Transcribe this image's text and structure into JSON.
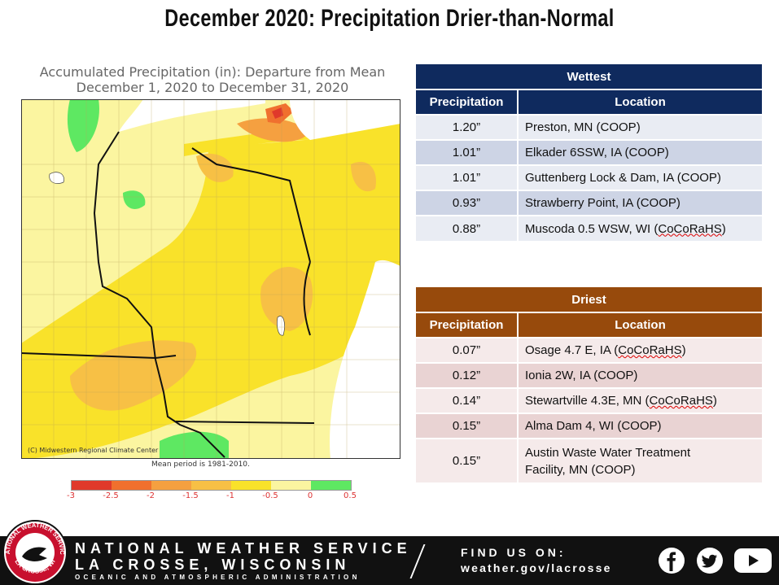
{
  "page_title": "December 2020:  Precipitation Drier-than-Normal",
  "map": {
    "title_line1": "Accumulated Precipitation (in): Departure from Mean",
    "title_line2": "December 1, 2020 to December 31, 2020",
    "credit": "(C) Midwestern Regional Climate Center",
    "mean_period": "Mean period is 1981-2010.",
    "legend": {
      "colors": [
        "#e0392b",
        "#f0702e",
        "#f5a040",
        "#f7c045",
        "#f9e22a",
        "#fbf5a0",
        "#5ee862"
      ],
      "tick_labels": [
        "-3",
        "-2.5",
        "-2",
        "-1.5",
        "-1",
        "-0.5",
        "0",
        "0.5"
      ]
    }
  },
  "wettest": {
    "title": "Wettest",
    "col_precip": "Precipitation",
    "col_location": "Location",
    "rows": [
      {
        "precip": "1.20”",
        "location": "Preston, MN (COOP)"
      },
      {
        "precip": "1.01”",
        "location": "Elkader 6SSW, IA (COOP)"
      },
      {
        "precip": "1.01”",
        "location": "Guttenberg Lock & Dam, IA (COOP)"
      },
      {
        "precip": "0.93”",
        "location": "Strawberry Point, IA (COOP)"
      },
      {
        "precip": "0.88”",
        "location_pre": "Muscoda 0.5 WSW, WI (",
        "location_net": "CoCoRaHS",
        "location_post": ")"
      }
    ]
  },
  "driest": {
    "title": "Driest",
    "col_precip": "Precipitation",
    "col_location": "Location",
    "rows": [
      {
        "precip": "0.07”",
        "location_pre": "Osage 4.7 E, IA (",
        "location_net": "CoCoRaHS",
        "location_post": ")"
      },
      {
        "precip": "0.12”",
        "location": "Ionia 2W, IA (COOP)"
      },
      {
        "precip": "0.14”",
        "location_pre": "Stewartville 4.3E, MN (",
        "location_net": "CoCoRaHS",
        "location_post": ")"
      },
      {
        "precip": "0.15”",
        "location": "Alma Dam 4, WI (COOP)"
      },
      {
        "precip": "0.15”",
        "location_line1": "Austin Waste Water Treatment",
        "location_line2": "Facility, MN (COOP)"
      }
    ]
  },
  "footer": {
    "line1": "NATIONAL WEATHER SERVICE",
    "line2": "LA CROSSE, WISCONSIN",
    "line3": "OCEANIC AND ATMOSPHERIC ADMINISTRATION",
    "find_us": "FIND US ON:",
    "url": "weather.gov/lacrosse",
    "logo_top": "NATIONAL WEATHER SERVICE",
    "logo_bottom": "LA CROSSE, WI",
    "icons": [
      "facebook-icon",
      "twitter-icon",
      "youtube-icon"
    ]
  }
}
